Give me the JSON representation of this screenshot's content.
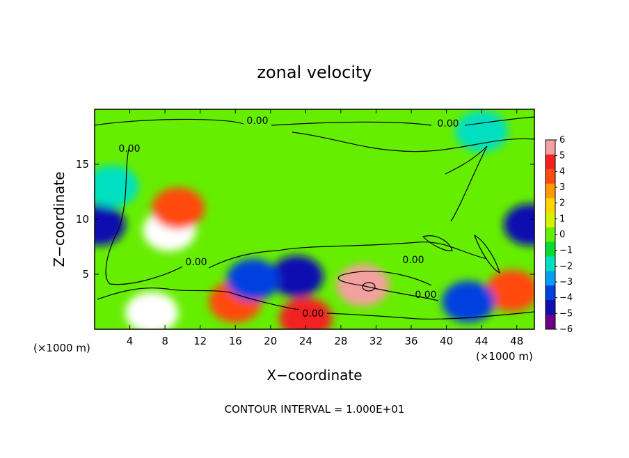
{
  "chart_data": {
    "type": "heatmap",
    "title": "zonal velocity",
    "xlabel": "X−coordinate",
    "ylabel": "Z−coordinate",
    "x_unit_left": "(×1000 m)",
    "x_unit_right": "(×1000 m)",
    "xlim": [
      0,
      50
    ],
    "ylim": [
      0,
      20
    ],
    "x_ticks": [
      4,
      8,
      12,
      16,
      20,
      24,
      28,
      32,
      36,
      40,
      44,
      48
    ],
    "y_ticks": [
      5,
      10,
      15
    ],
    "colorbar": {
      "ticks": [
        6,
        5,
        4,
        3,
        2,
        1,
        0,
        -1,
        -2,
        -3,
        -4,
        -5,
        -6
      ],
      "tick_labels": [
        "6",
        "5",
        "4",
        "3",
        "2",
        "1",
        "0",
        "−1",
        "−2",
        "−3",
        "−4",
        "−5",
        "−6"
      ],
      "colors": [
        "#f4a0a0",
        "#f22020",
        "#ff4a10",
        "#ff9900",
        "#ffd400",
        "#d8f000",
        "#66ee00",
        "#00dd30",
        "#00e0c0",
        "#00a0f0",
        "#0040e0",
        "#1010b0",
        "#6a008a"
      ]
    },
    "features": [
      {
        "x": 8.5,
        "z": 9.0,
        "value": 6.5
      },
      {
        "x": 9.5,
        "z": 11.0,
        "value": 4.5
      },
      {
        "x": 30.5,
        "z": 4.0,
        "value": 6.0
      },
      {
        "x": 23.0,
        "z": 4.8,
        "value": -4.5
      },
      {
        "x": 0.5,
        "z": 9.5,
        "value": -5.0
      },
      {
        "x": 49.5,
        "z": 9.5,
        "value": -5.0
      },
      {
        "x": 6.5,
        "z": 1.5,
        "value": 6.5
      },
      {
        "x": 16.0,
        "z": 2.5,
        "value": 4.5
      },
      {
        "x": 18.0,
        "z": 4.5,
        "value": -4.0
      },
      {
        "x": 47.5,
        "z": 3.5,
        "value": 4.5
      },
      {
        "x": 42.5,
        "z": 2.5,
        "value": -3.5
      },
      {
        "x": 24.0,
        "z": 1.0,
        "value": 5.0
      },
      {
        "x": 44.0,
        "z": 18.0,
        "value": -1.5
      },
      {
        "x": 2.0,
        "z": 13.0,
        "value": -2.0
      }
    ],
    "contour_labels": [
      "0.00",
      "0.00",
      "0.00",
      "0.00",
      "0.00",
      "0.00",
      "0.00"
    ],
    "note": "CONTOUR INTERVAL = 1.000E+01"
  }
}
